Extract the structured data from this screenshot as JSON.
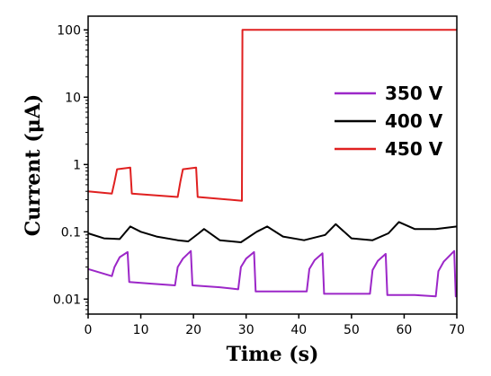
{
  "chart_data": {
    "type": "line",
    "xlabel": "Time (s)",
    "ylabel": "Current (μA)",
    "xlim": [
      0,
      70
    ],
    "ylim": [
      0.006,
      160
    ],
    "yscale": "log",
    "x_ticks": [
      0,
      10,
      20,
      30,
      40,
      50,
      60,
      70
    ],
    "y_ticks": [
      {
        "value": 0.01,
        "label": "0.01"
      },
      {
        "value": 0.1,
        "label": "0.1"
      },
      {
        "value": 1,
        "label": "1"
      },
      {
        "value": 10,
        "label": "10"
      },
      {
        "value": 100,
        "label": "100"
      }
    ],
    "grid": false,
    "legend_position": "right-middle",
    "series": [
      {
        "name": "350 V",
        "color": "#9c27c8",
        "x": [
          0,
          4.5,
          5,
          6,
          7.5,
          7.8,
          12,
          16.5,
          17,
          18,
          19.5,
          19.8,
          25,
          28.5,
          29,
          30,
          31.5,
          31.8,
          38,
          41.5,
          42,
          43,
          44.5,
          44.8,
          50,
          53.5,
          54,
          55,
          56.5,
          56.8,
          62,
          66,
          66.5,
          67.5,
          69.5,
          69.8,
          70
        ],
        "y": [
          0.028,
          0.022,
          0.03,
          0.042,
          0.05,
          0.018,
          0.017,
          0.016,
          0.03,
          0.04,
          0.052,
          0.016,
          0.015,
          0.014,
          0.03,
          0.04,
          0.05,
          0.013,
          0.013,
          0.013,
          0.028,
          0.038,
          0.048,
          0.012,
          0.012,
          0.012,
          0.027,
          0.037,
          0.047,
          0.0115,
          0.0115,
          0.011,
          0.026,
          0.036,
          0.052,
          0.011,
          0.011
        ]
      },
      {
        "name": "400 V",
        "color": "#000000",
        "x": [
          0,
          3,
          6,
          8,
          10,
          13,
          17,
          19,
          21,
          22,
          25,
          29,
          32,
          34,
          37,
          41,
          45,
          47,
          50,
          54,
          57,
          59,
          62,
          66,
          70
        ],
        "y": [
          0.095,
          0.08,
          0.078,
          0.12,
          0.1,
          0.085,
          0.075,
          0.072,
          0.095,
          0.11,
          0.075,
          0.07,
          0.1,
          0.12,
          0.085,
          0.075,
          0.09,
          0.13,
          0.08,
          0.075,
          0.095,
          0.14,
          0.11,
          0.11,
          0.12
        ]
      },
      {
        "name": "450 V",
        "color": "#e02020",
        "x": [
          0,
          4.5,
          5,
          5.5,
          8,
          8.3,
          17,
          17.5,
          18,
          20.5,
          20.8,
          29.2,
          29.3,
          70
        ],
        "y": [
          0.4,
          0.37,
          0.55,
          0.85,
          0.9,
          0.37,
          0.33,
          0.55,
          0.85,
          0.9,
          0.33,
          0.29,
          100,
          100
        ]
      }
    ]
  }
}
